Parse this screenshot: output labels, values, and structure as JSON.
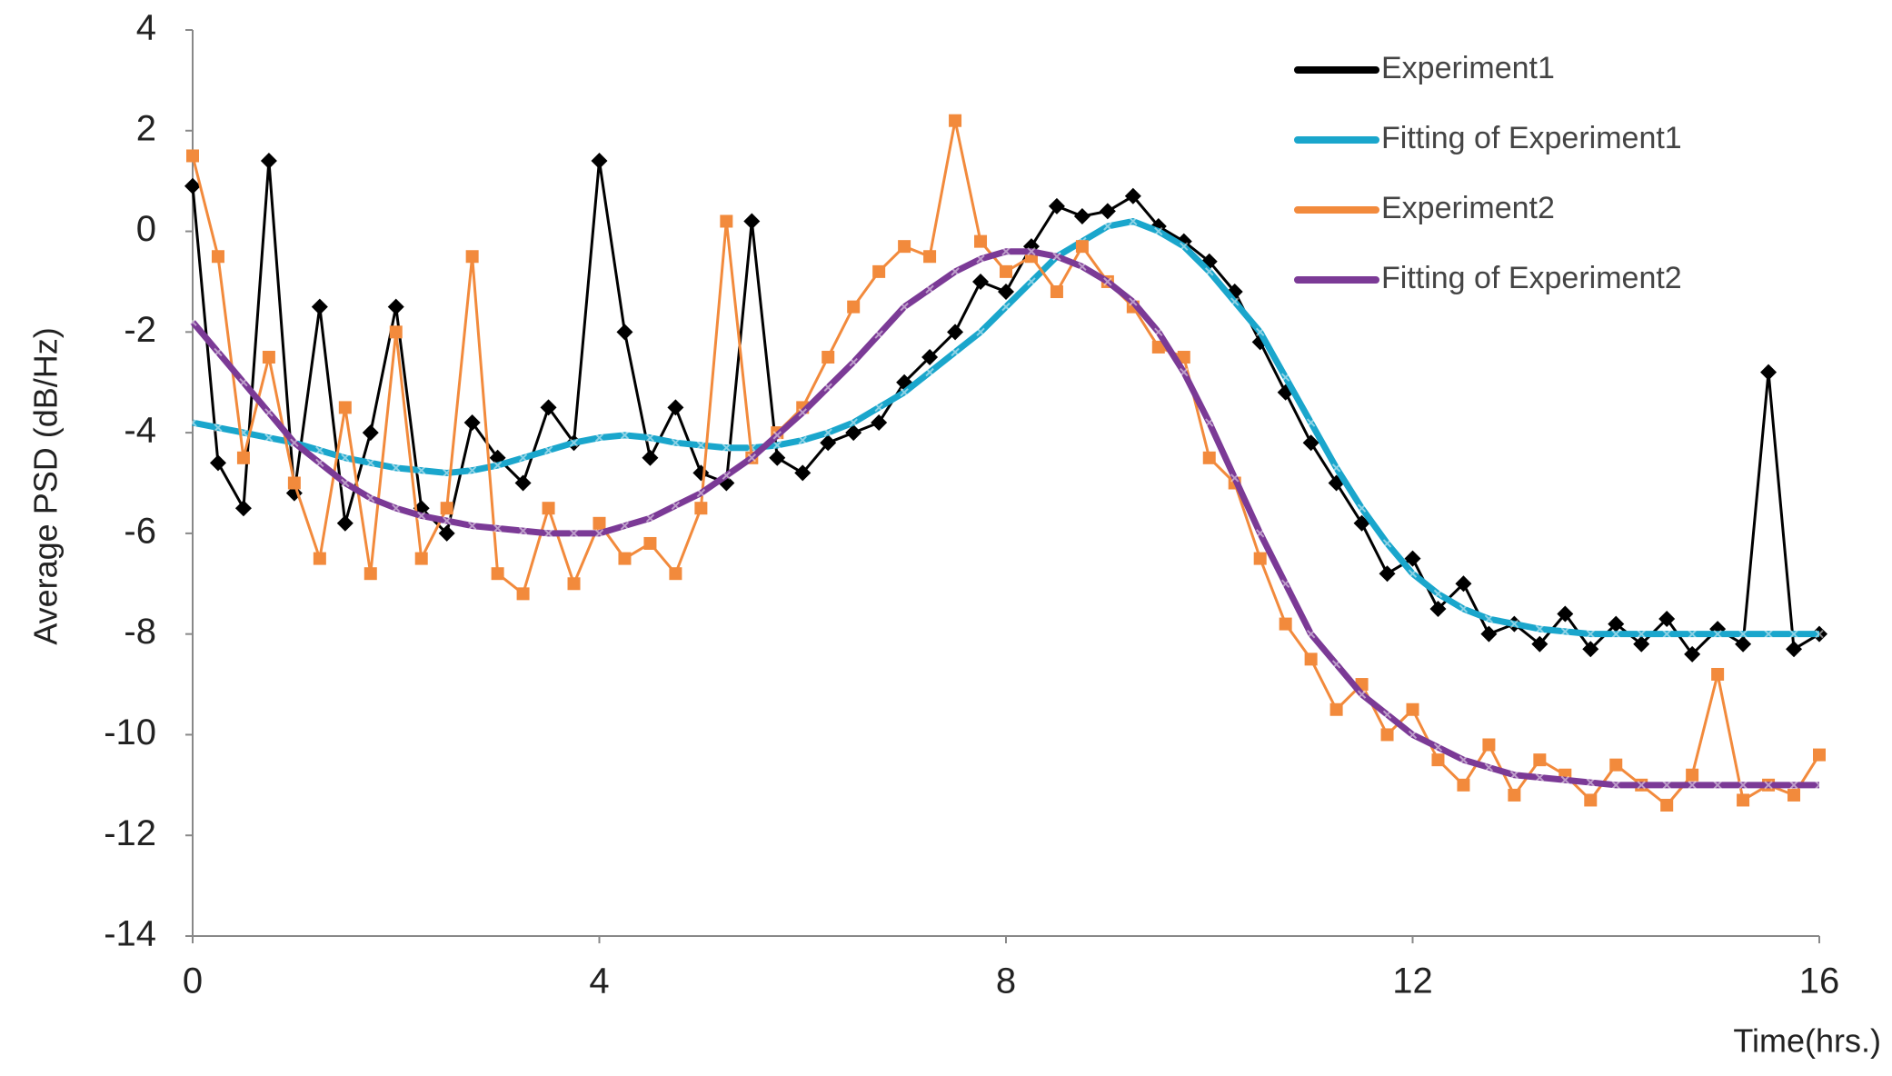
{
  "chart_data": {
    "type": "line",
    "ylabel": "Average PSD (dB/Hz)",
    "xlabel": "Time(hrs.)",
    "xlim": [
      0,
      16
    ],
    "xticks": [
      0,
      4,
      8,
      12,
      16
    ],
    "ylim": [
      -14,
      4
    ],
    "yticks": [
      -14,
      -12,
      -10,
      -8,
      -6,
      -4,
      -2,
      0,
      2,
      4
    ],
    "legend": "top-right",
    "grid": false,
    "x": [
      0,
      0.25,
      0.5,
      0.75,
      1,
      1.25,
      1.5,
      1.75,
      2,
      2.25,
      2.5,
      2.75,
      3,
      3.25,
      3.5,
      3.75,
      4,
      4.25,
      4.5,
      4.75,
      5,
      5.25,
      5.5,
      5.75,
      6,
      6.25,
      6.5,
      6.75,
      7,
      7.25,
      7.5,
      7.75,
      8,
      8.25,
      8.5,
      8.75,
      9,
      9.25,
      9.5,
      9.75,
      10,
      10.25,
      10.5,
      10.75,
      11,
      11.25,
      11.5,
      11.75,
      12,
      12.25,
      12.5,
      12.75,
      13,
      13.25,
      13.5,
      13.75,
      14,
      14.25,
      14.5,
      14.75,
      15,
      15.25,
      15.5,
      15.75,
      16
    ],
    "series": [
      {
        "name": "Experiment1",
        "color": "#000000",
        "marker": "diamond",
        "values": [
          0.9,
          -4.6,
          -5.5,
          1.4,
          -5.2,
          -1.5,
          -5.8,
          -4.0,
          -1.5,
          -5.5,
          -6.0,
          -3.8,
          -4.5,
          -5.0,
          -3.5,
          -4.2,
          1.4,
          -2.0,
          -4.5,
          -3.5,
          -4.8,
          -5.0,
          0.2,
          -4.5,
          -4.8,
          -4.2,
          -4.0,
          -3.8,
          -3.0,
          -2.5,
          -2.0,
          -1.0,
          -1.2,
          -0.3,
          0.5,
          0.3,
          0.4,
          0.7,
          0.1,
          -0.2,
          -0.6,
          -1.2,
          -2.2,
          -3.2,
          -4.2,
          -5.0,
          -5.8,
          -6.8,
          -6.5,
          -7.5,
          -7.0,
          -8.0,
          -7.8,
          -8.2,
          -7.6,
          -8.3,
          -7.8,
          -8.2,
          -7.7,
          -8.4,
          -7.9,
          -8.2,
          -2.8,
          -8.3,
          -8.0
        ]
      },
      {
        "name": "Fitting of Experiment1",
        "color": "#1aa6cc",
        "marker": "cross",
        "values": [
          -3.8,
          -3.9,
          -4.0,
          -4.1,
          -4.2,
          -4.35,
          -4.5,
          -4.6,
          -4.7,
          -4.75,
          -4.8,
          -4.75,
          -4.65,
          -4.5,
          -4.35,
          -4.2,
          -4.1,
          -4.05,
          -4.1,
          -4.2,
          -4.25,
          -4.3,
          -4.3,
          -4.25,
          -4.15,
          -4.0,
          -3.8,
          -3.5,
          -3.2,
          -2.8,
          -2.4,
          -2.0,
          -1.5,
          -1.0,
          -0.5,
          -0.2,
          0.1,
          0.2,
          0.0,
          -0.3,
          -0.8,
          -1.4,
          -2.0,
          -2.9,
          -3.8,
          -4.7,
          -5.5,
          -6.2,
          -6.8,
          -7.2,
          -7.5,
          -7.7,
          -7.8,
          -7.9,
          -7.95,
          -8.0,
          -8.0,
          -8.0,
          -8.0,
          -8.0,
          -8.0,
          -8.0,
          -8.0,
          -8.0,
          -8.0
        ]
      },
      {
        "name": "Experiment2",
        "color": "#f28a3c",
        "marker": "square",
        "values": [
          1.5,
          -0.5,
          -4.5,
          -2.5,
          -5.0,
          -6.5,
          -3.5,
          -6.8,
          -2.0,
          -6.5,
          -5.5,
          -0.5,
          -6.8,
          -7.2,
          -5.5,
          -7.0,
          -5.8,
          -6.5,
          -6.2,
          -6.8,
          -5.5,
          0.2,
          -4.5,
          -4.0,
          -3.5,
          -2.5,
          -1.5,
          -0.8,
          -0.3,
          -0.5,
          2.2,
          -0.2,
          -0.8,
          -0.5,
          -1.2,
          -0.3,
          -1.0,
          -1.5,
          -2.3,
          -2.5,
          -4.5,
          -5.0,
          -6.5,
          -7.8,
          -8.5,
          -9.5,
          -9.0,
          -10.0,
          -9.5,
          -10.5,
          -11.0,
          -10.2,
          -11.2,
          -10.5,
          -10.8,
          -11.3,
          -10.6,
          -11.0,
          -11.4,
          -10.8,
          -8.8,
          -11.3,
          -11.0,
          -11.2,
          -10.4
        ]
      },
      {
        "name": "Fitting of Experiment2",
        "color": "#7b3a96",
        "marker": "cross",
        "values": [
          -1.8,
          -2.4,
          -3.0,
          -3.6,
          -4.2,
          -4.6,
          -5.0,
          -5.3,
          -5.5,
          -5.65,
          -5.75,
          -5.85,
          -5.9,
          -5.95,
          -6.0,
          -6.0,
          -6.0,
          -5.85,
          -5.7,
          -5.45,
          -5.2,
          -4.85,
          -4.5,
          -4.05,
          -3.6,
          -3.1,
          -2.6,
          -2.05,
          -1.5,
          -1.15,
          -0.8,
          -0.55,
          -0.4,
          -0.4,
          -0.5,
          -0.7,
          -1.0,
          -1.4,
          -2.0,
          -2.8,
          -3.8,
          -4.9,
          -6.0,
          -7.0,
          -8.0,
          -8.6,
          -9.2,
          -9.6,
          -10.0,
          -10.25,
          -10.5,
          -10.65,
          -10.8,
          -10.85,
          -10.9,
          -10.95,
          -11.0,
          -11.0,
          -11.0,
          -11.0,
          -11.0,
          -11.0,
          -11.0,
          -11.0,
          -11.0
        ]
      }
    ]
  }
}
